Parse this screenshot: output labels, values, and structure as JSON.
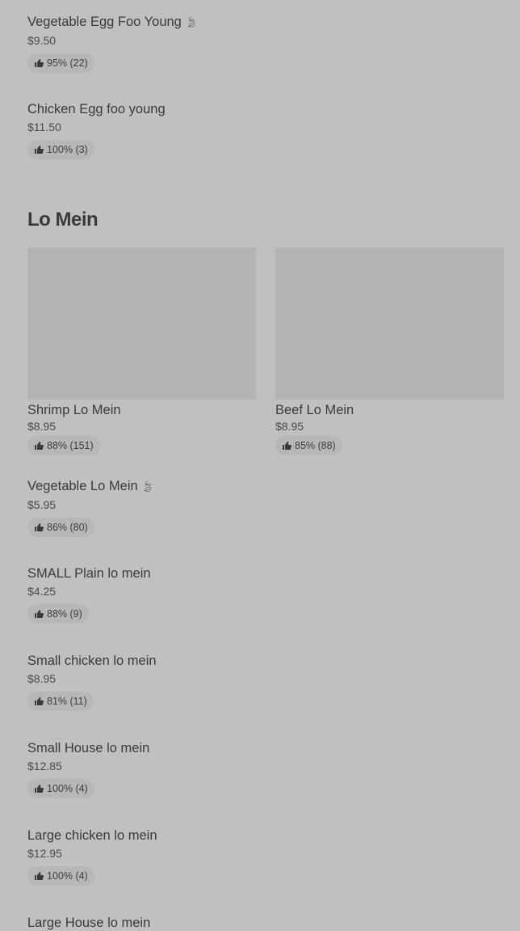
{
  "top_items": [
    {
      "name": "Vegetable Egg Foo Young",
      "vegetarian": true,
      "price": "$9.50",
      "rating": "95% (22)"
    },
    {
      "name": "Chicken Egg foo young",
      "vegetarian": false,
      "price": "$11.50",
      "rating": "100% (3)"
    }
  ],
  "section": {
    "title": "Lo Mein"
  },
  "cards": [
    {
      "name": "Shrimp Lo Mein",
      "price": "$8.95",
      "rating": "88% (151)"
    },
    {
      "name": "Beef Lo Mein",
      "price": "$8.95",
      "rating": "85% (88)"
    }
  ],
  "items": [
    {
      "name": "Vegetable Lo Mein",
      "vegetarian": true,
      "price": "$5.95",
      "rating": "86% (80)"
    },
    {
      "name": "SMALL Plain lo mein",
      "price": "$4.25",
      "rating": "88% (9)"
    },
    {
      "name": "Small chicken lo mein",
      "price": "$8.95",
      "rating": "81% (11)"
    },
    {
      "name": "Small House lo mein",
      "price": "$12.85",
      "rating": "100% (4)"
    },
    {
      "name": "Large chicken lo mein",
      "price": "$12.95",
      "rating": "100% (4)"
    },
    {
      "name": "Large House lo mein"
    }
  ],
  "icons": {
    "rating": "thumbs-up-icon",
    "vegetarian": "leaf-icon"
  },
  "colors": {
    "overlay_bg": "#c0c0c0",
    "pill_bg": "#b7b7b7",
    "text": "#3a3a3a"
  }
}
